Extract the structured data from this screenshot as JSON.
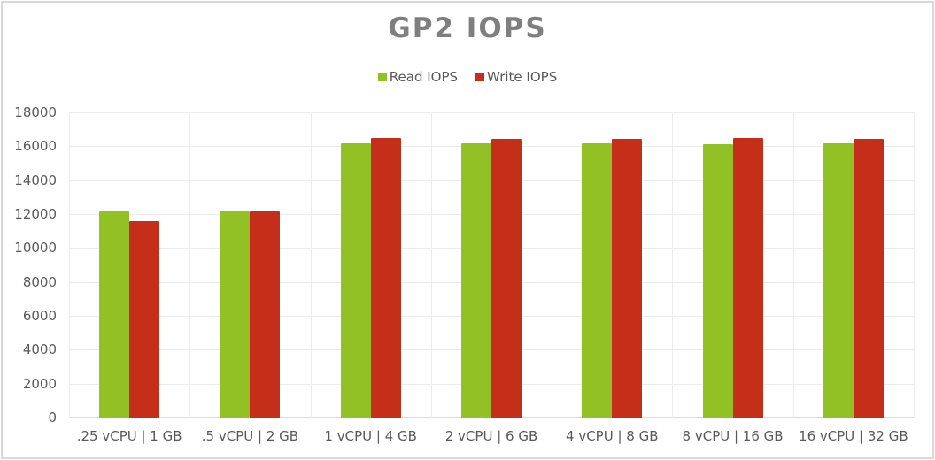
{
  "chart_data": {
    "type": "bar",
    "title": "GP2 IOPS",
    "xlabel": "",
    "ylabel": "",
    "ylim": [
      0,
      18000
    ],
    "yticks": [
      0,
      2000,
      4000,
      6000,
      8000,
      10000,
      12000,
      14000,
      16000,
      18000
    ],
    "grid": true,
    "legend_position": "top",
    "categories": [
      ".25 vCPU | 1 GB",
      ".5 vCPU | 2 GB",
      "1 vCPU | 4 GB",
      "2 vCPU | 6 GB",
      "4 vCPU | 8 GB",
      "8 vCPU | 16 GB",
      "16 vCPU | 32 GB"
    ],
    "series": [
      {
        "name": "Read IOPS",
        "color": "#92c126",
        "values": [
          12150,
          12150,
          16200,
          16150,
          16200,
          16100,
          16150
        ]
      },
      {
        "name": "Write IOPS",
        "color": "#c52f1a",
        "values": [
          11570,
          12150,
          16500,
          16450,
          16450,
          16500,
          16450
        ]
      }
    ]
  },
  "title": "GP2 IOPS",
  "legend": [
    {
      "label": "Read IOPS",
      "color": "#92c126"
    },
    {
      "label": "Write IOPS",
      "color": "#c52f1a"
    }
  ]
}
